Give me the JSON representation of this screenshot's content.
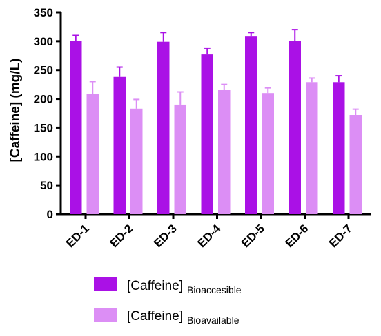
{
  "chart_data": {
    "type": "bar",
    "ylabel": "[Caffeine] (mg/L)",
    "ylim": [
      0,
      350
    ],
    "yticks": [
      0,
      50,
      100,
      150,
      200,
      250,
      300,
      350
    ],
    "categories": [
      "ED-1",
      "ED-2",
      "ED-3",
      "ED-4",
      "ED-5",
      "ED-6",
      "ED-7"
    ],
    "series": [
      {
        "name": "[Caffeine] Bioaccesible",
        "legend_main": "[Caffeine]",
        "legend_sub": "Bioaccesible",
        "color": "#aa11e6",
        "values": [
          301,
          238,
          299,
          277,
          308,
          301,
          229
        ],
        "errors": [
          9,
          17,
          16,
          11,
          7,
          19,
          11
        ]
      },
      {
        "name": "[Caffeine] Bioavailable",
        "legend_main": "[Caffeine]",
        "legend_sub": "Bioavailable",
        "color": "#dc8ef5",
        "values": [
          209,
          183,
          190,
          216,
          210,
          229,
          172
        ],
        "errors": [
          21,
          16,
          22,
          9,
          9,
          7,
          10
        ]
      }
    ],
    "grid": false,
    "legend_position": "bottom"
  }
}
